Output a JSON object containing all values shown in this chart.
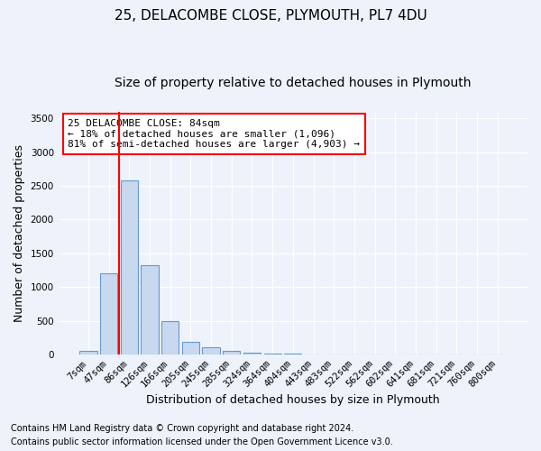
{
  "title1": "25, DELACOMBE CLOSE, PLYMOUTH, PL7 4DU",
  "title2": "Size of property relative to detached houses in Plymouth",
  "xlabel": "Distribution of detached houses by size in Plymouth",
  "ylabel": "Number of detached properties",
  "bar_labels": [
    "7sqm",
    "47sqm",
    "86sqm",
    "126sqm",
    "166sqm",
    "205sqm",
    "245sqm",
    "285sqm",
    "324sqm",
    "364sqm",
    "404sqm",
    "443sqm",
    "483sqm",
    "522sqm",
    "562sqm",
    "602sqm",
    "641sqm",
    "681sqm",
    "721sqm",
    "760sqm",
    "800sqm"
  ],
  "bar_values": [
    50,
    1200,
    2575,
    1325,
    490,
    185,
    110,
    50,
    30,
    15,
    10,
    5,
    5,
    3,
    3,
    2,
    2,
    2,
    1,
    1,
    1
  ],
  "bar_color": "#c8d8ee",
  "bar_edge_color": "#6699cc",
  "red_line_x": 1.5,
  "ylim": [
    0,
    3600
  ],
  "yticks": [
    0,
    500,
    1000,
    1500,
    2000,
    2500,
    3000,
    3500
  ],
  "annotation_text": "25 DELACOMBE CLOSE: 84sqm\n← 18% of detached houses are smaller (1,096)\n81% of semi-detached houses are larger (4,903) →",
  "footer1": "Contains HM Land Registry data © Crown copyright and database right 2024.",
  "footer2": "Contains public sector information licensed under the Open Government Licence v3.0.",
  "background_color": "#edf2fb",
  "grid_color": "#dde6f5",
  "title_fontsize": 11,
  "subtitle_fontsize": 10,
  "axis_label_fontsize": 9,
  "tick_fontsize": 7.5,
  "annotation_fontsize": 8,
  "footer_fontsize": 7
}
